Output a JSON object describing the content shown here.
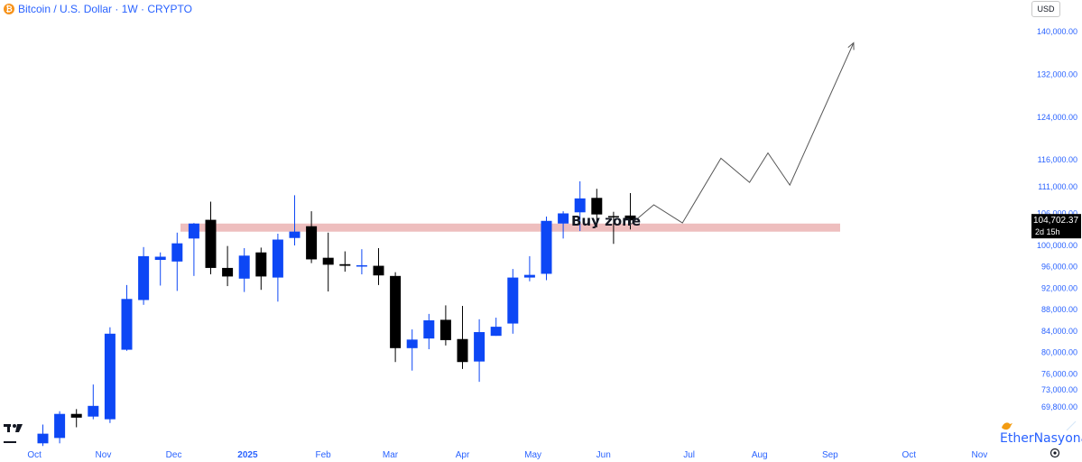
{
  "header": {
    "coin_glyph": "₿",
    "symbol_title": "Bitcoin / U.S. Dollar · 1W · CRYPTO"
  },
  "currency_button": "USD",
  "watermark": "EtherNasyonaL",
  "colors": {
    "up": "#0d47f5",
    "down": "#000000",
    "zone": "#e8a8a8",
    "axis_text": "#2962ff",
    "projection": "#555555"
  },
  "chart_data": {
    "type": "candlestick",
    "title": "Bitcoin / U.S. Dollar · 1W · CRYPTO",
    "ylim": [
      67800,
      142500
    ],
    "y_ticks": [
      69800,
      73000,
      76000,
      80000,
      84000,
      88000,
      92000,
      96000,
      100000,
      106000,
      111000,
      116000,
      124000,
      132000,
      140000
    ],
    "y_tick_labels": [
      "69,800.00",
      "73,000.00",
      "76,000.00",
      "80,000.00",
      "84,000.00",
      "88,000.00",
      "92,000.00",
      "96,000.00",
      "100,000.00",
      "106,000.00",
      "111,000.00",
      "116,000.00",
      "124,000.00",
      "132,000.00",
      "140,000.00"
    ],
    "x_labels": [
      {
        "label": "Oct",
        "week": -0.5,
        "bold": false
      },
      {
        "label": "Nov",
        "week": 3.6,
        "bold": false
      },
      {
        "label": "Dec",
        "week": 7.8,
        "bold": false
      },
      {
        "label": "2025",
        "week": 12.2,
        "bold": true
      },
      {
        "label": "Feb",
        "week": 16.7,
        "bold": false
      },
      {
        "label": "Mar",
        "week": 20.7,
        "bold": false
      },
      {
        "label": "Apr",
        "week": 25.0,
        "bold": false
      },
      {
        "label": "May",
        "week": 29.2,
        "bold": false
      },
      {
        "label": "Jun",
        "week": 33.4,
        "bold": false
      },
      {
        "label": "Jul",
        "week": 38.5,
        "bold": false
      },
      {
        "label": "Aug",
        "week": 42.7,
        "bold": false
      },
      {
        "label": "Sep",
        "week": 46.9,
        "bold": false
      },
      {
        "label": "Oct",
        "week": 51.6,
        "bold": false
      },
      {
        "label": "Nov",
        "week": 55.8,
        "bold": false
      }
    ],
    "candles": [
      {
        "o": 63000,
        "h": 66500,
        "l": 62500,
        "c": 64800
      },
      {
        "o": 64000,
        "h": 69000,
        "l": 63000,
        "c": 68500
      },
      {
        "o": 68500,
        "h": 69400,
        "l": 66000,
        "c": 67800
      },
      {
        "o": 68000,
        "h": 74000,
        "l": 67500,
        "c": 70000
      },
      {
        "o": 67500,
        "h": 84700,
        "l": 66800,
        "c": 83500
      },
      {
        "o": 80500,
        "h": 92600,
        "l": 80300,
        "c": 90000
      },
      {
        "o": 89800,
        "h": 99700,
        "l": 88900,
        "c": 98000
      },
      {
        "o": 97300,
        "h": 98700,
        "l": 92500,
        "c": 97900
      },
      {
        "o": 97000,
        "h": 102400,
        "l": 91500,
        "c": 100400
      },
      {
        "o": 101300,
        "h": 104200,
        "l": 94300,
        "c": 104100
      },
      {
        "o": 104800,
        "h": 108200,
        "l": 94600,
        "c": 95800
      },
      {
        "o": 95800,
        "h": 99900,
        "l": 92400,
        "c": 94200
      },
      {
        "o": 93800,
        "h": 99500,
        "l": 91300,
        "c": 98100
      },
      {
        "o": 98700,
        "h": 99600,
        "l": 91700,
        "c": 94200
      },
      {
        "o": 94000,
        "h": 102200,
        "l": 89500,
        "c": 101100
      },
      {
        "o": 101400,
        "h": 109400,
        "l": 100000,
        "c": 102600
      },
      {
        "o": 103600,
        "h": 106400,
        "l": 96700,
        "c": 97400
      },
      {
        "o": 97700,
        "h": 102400,
        "l": 91400,
        "c": 96400
      },
      {
        "o": 96500,
        "h": 98900,
        "l": 95100,
        "c": 96200
      },
      {
        "o": 96100,
        "h": 99300,
        "l": 94600,
        "c": 96300
      },
      {
        "o": 96200,
        "h": 99500,
        "l": 92600,
        "c": 94400
      },
      {
        "o": 94300,
        "h": 95000,
        "l": 78200,
        "c": 80800
      },
      {
        "o": 80800,
        "h": 84300,
        "l": 76600,
        "c": 82400
      },
      {
        "o": 82600,
        "h": 87200,
        "l": 80600,
        "c": 86000
      },
      {
        "o": 86100,
        "h": 88800,
        "l": 81300,
        "c": 82300
      },
      {
        "o": 82500,
        "h": 88700,
        "l": 76900,
        "c": 78200
      },
      {
        "o": 78300,
        "h": 86200,
        "l": 74500,
        "c": 83800
      },
      {
        "o": 83100,
        "h": 86500,
        "l": 83100,
        "c": 84800
      },
      {
        "o": 85400,
        "h": 95600,
        "l": 83500,
        "c": 94000
      },
      {
        "o": 94000,
        "h": 98000,
        "l": 93300,
        "c": 94500
      },
      {
        "o": 94700,
        "h": 105400,
        "l": 93500,
        "c": 104600
      },
      {
        "o": 104100,
        "h": 106400,
        "l": 101300,
        "c": 106000
      },
      {
        "o": 106200,
        "h": 112000,
        "l": 102700,
        "c": 108800
      },
      {
        "o": 108900,
        "h": 110600,
        "l": 103400,
        "c": 105800
      },
      {
        "o": 105500,
        "h": 106300,
        "l": 100300,
        "c": 105300
      },
      {
        "o": 105600,
        "h": 109800,
        "l": 103000,
        "c": 104700
      }
    ],
    "buy_zone": {
      "low": 102800,
      "high": 104100,
      "label": "Buy zone"
    },
    "projection": [
      {
        "week": 35.0,
        "price": 103900
      },
      {
        "week": 36.4,
        "price": 107600
      },
      {
        "week": 38.1,
        "price": 104200
      },
      {
        "week": 40.4,
        "price": 116300
      },
      {
        "week": 42.1,
        "price": 111800
      },
      {
        "week": 43.2,
        "price": 117300
      },
      {
        "week": 44.5,
        "price": 111300
      },
      {
        "week": 48.3,
        "price": 137900
      }
    ],
    "last_price": {
      "price": 104702.37,
      "label": "104,702.37",
      "countdown": "2d 15h"
    }
  }
}
